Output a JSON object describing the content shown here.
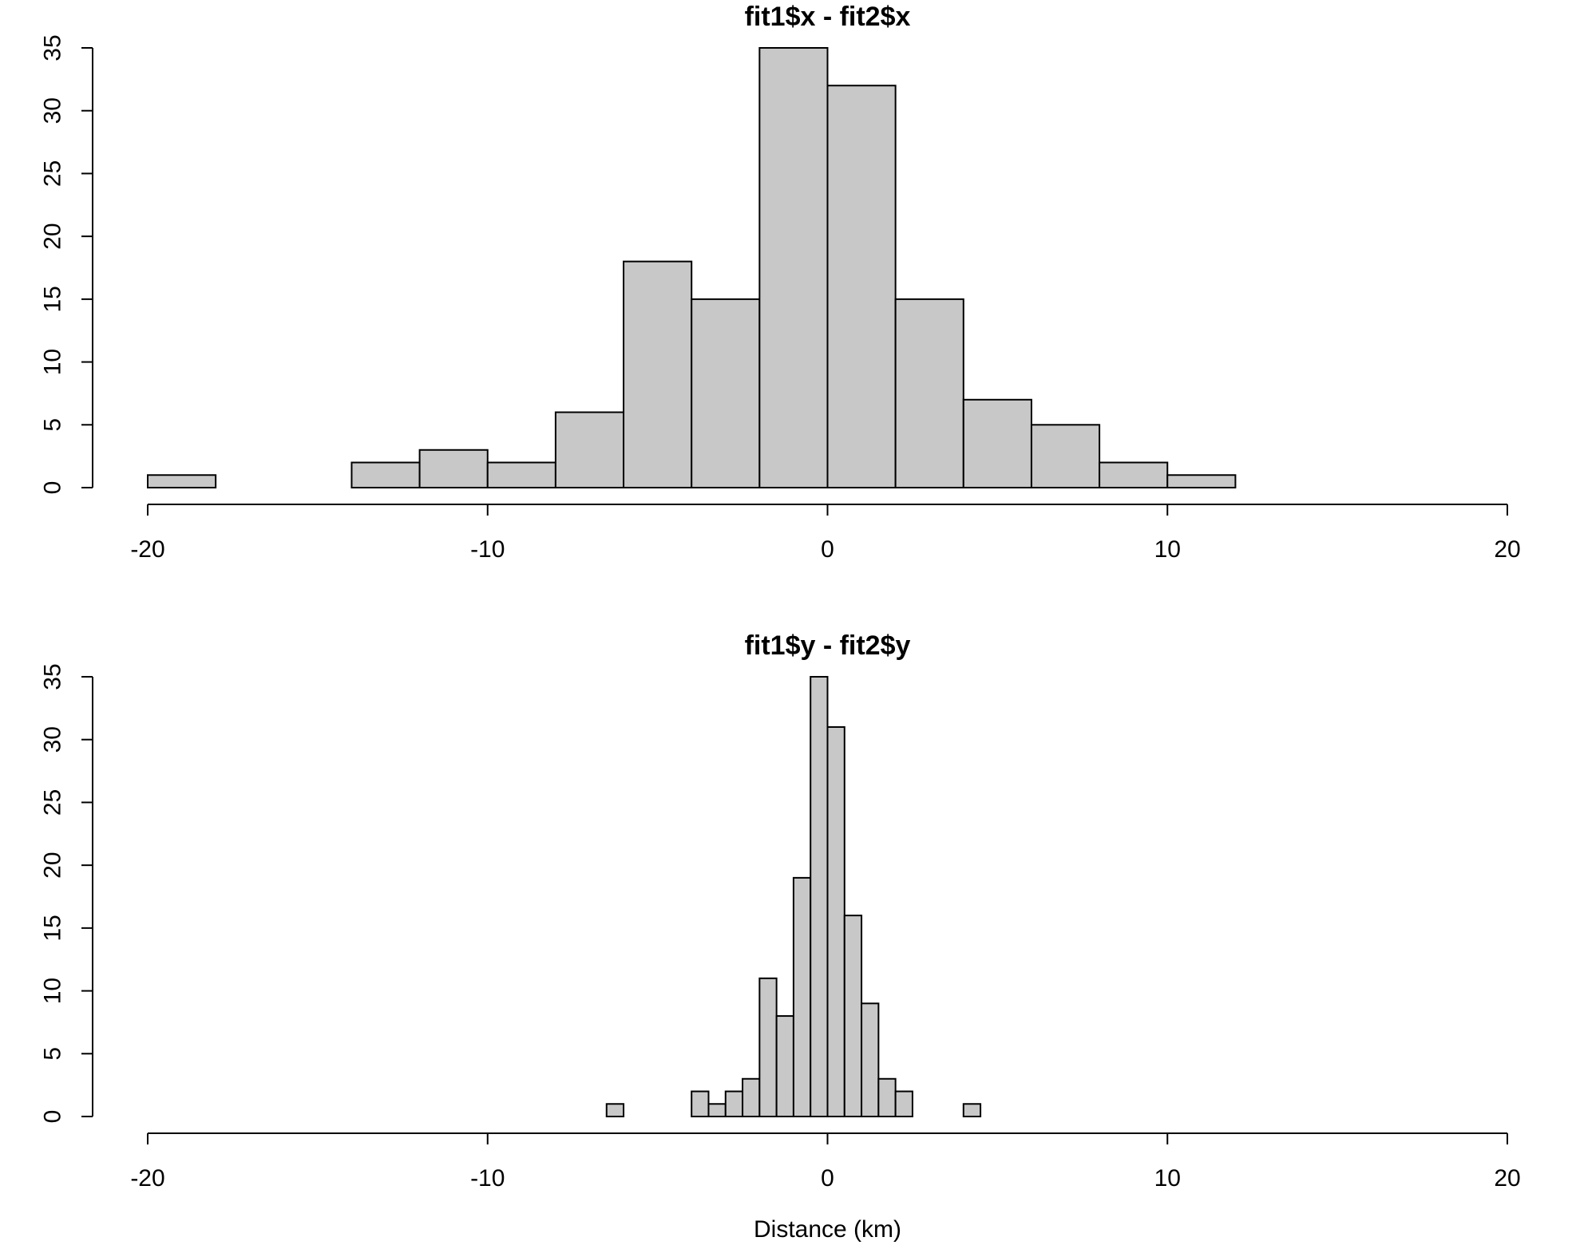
{
  "chart_data": [
    {
      "type": "bar",
      "title": "fit1$x - fit2$x",
      "xlabel": "",
      "ylabel": "",
      "xlim": [
        -20,
        20
      ],
      "ylim": [
        0,
        35
      ],
      "xticks": [
        -20,
        -10,
        0,
        10,
        20
      ],
      "yticks": [
        0,
        5,
        10,
        15,
        20,
        25,
        30,
        35
      ],
      "bin_width": 2,
      "bins": [
        {
          "from": -20,
          "to": -18,
          "count": 1
        },
        {
          "from": -18,
          "to": -16,
          "count": 0
        },
        {
          "from": -16,
          "to": -14,
          "count": 0
        },
        {
          "from": -14,
          "to": -12,
          "count": 2
        },
        {
          "from": -12,
          "to": -10,
          "count": 3
        },
        {
          "from": -10,
          "to": -8,
          "count": 2
        },
        {
          "from": -8,
          "to": -6,
          "count": 6
        },
        {
          "from": -6,
          "to": -4,
          "count": 18
        },
        {
          "from": -4,
          "to": -2,
          "count": 15
        },
        {
          "from": -2,
          "to": 0,
          "count": 35
        },
        {
          "from": 0,
          "to": 2,
          "count": 32
        },
        {
          "from": 2,
          "to": 4,
          "count": 15
        },
        {
          "from": 4,
          "to": 6,
          "count": 7
        },
        {
          "from": 6,
          "to": 8,
          "count": 5
        },
        {
          "from": 8,
          "to": 10,
          "count": 2
        },
        {
          "from": 10,
          "to": 12,
          "count": 1
        }
      ]
    },
    {
      "type": "bar",
      "title": "fit1$y - fit2$y",
      "xlabel": "Distance (km)",
      "ylabel": "",
      "xlim": [
        -20,
        20
      ],
      "ylim": [
        0,
        35
      ],
      "xticks": [
        -20,
        -10,
        0,
        10,
        20
      ],
      "yticks": [
        0,
        5,
        10,
        15,
        20,
        25,
        30,
        35
      ],
      "bin_width": 0.5,
      "bins": [
        {
          "from": -6.5,
          "to": -6.0,
          "count": 1
        },
        {
          "from": -6.0,
          "to": -5.5,
          "count": 0
        },
        {
          "from": -5.5,
          "to": -5.0,
          "count": 0
        },
        {
          "from": -5.0,
          "to": -4.5,
          "count": 0
        },
        {
          "from": -4.5,
          "to": -4.0,
          "count": 0
        },
        {
          "from": -4.0,
          "to": -3.5,
          "count": 2
        },
        {
          "from": -3.5,
          "to": -3.0,
          "count": 1
        },
        {
          "from": -3.0,
          "to": -2.5,
          "count": 2
        },
        {
          "from": -2.5,
          "to": -2.0,
          "count": 3
        },
        {
          "from": -2.0,
          "to": -1.5,
          "count": 11
        },
        {
          "from": -1.5,
          "to": -1.0,
          "count": 8
        },
        {
          "from": -1.0,
          "to": -0.5,
          "count": 19
        },
        {
          "from": -0.5,
          "to": 0.0,
          "count": 35
        },
        {
          "from": 0.0,
          "to": 0.5,
          "count": 31
        },
        {
          "from": 0.5,
          "to": 1.0,
          "count": 16
        },
        {
          "from": 1.0,
          "to": 1.5,
          "count": 9
        },
        {
          "from": 1.5,
          "to": 2.0,
          "count": 3
        },
        {
          "from": 2.0,
          "to": 2.5,
          "count": 2
        },
        {
          "from": 2.5,
          "to": 3.0,
          "count": 0
        },
        {
          "from": 3.0,
          "to": 3.5,
          "count": 0
        },
        {
          "from": 3.5,
          "to": 4.0,
          "count": 0
        },
        {
          "from": 4.0,
          "to": 4.5,
          "count": 1
        }
      ]
    }
  ]
}
